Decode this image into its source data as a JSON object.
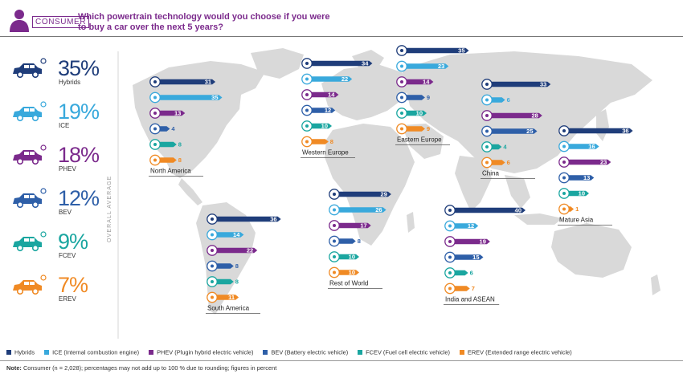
{
  "header": {
    "badge": "CONSUMER",
    "title": "Which powertrain technology would you choose if you were to buy a car over the next 5 years?"
  },
  "overall": {
    "label": "OVERALL AVERAGE",
    "items": [
      {
        "name": "Hybrids",
        "pct": "35%",
        "icon": "car-hybrid-icon"
      },
      {
        "name": "ICE",
        "pct": "19%",
        "icon": "car-ice-icon"
      },
      {
        "name": "PHEV",
        "pct": "18%",
        "icon": "car-phev-icon"
      },
      {
        "name": "BEV",
        "pct": "12%",
        "icon": "car-bev-icon"
      },
      {
        "name": "FCEV",
        "pct": "9%",
        "icon": "car-fcev-icon"
      },
      {
        "name": "EREV",
        "pct": "7%",
        "icon": "car-erev-icon"
      }
    ]
  },
  "colors": {
    "Hybrids": "#1f3d7a",
    "ICE": "#39a9dc",
    "PHEV": "#7b2a8c",
    "BEV": "#2e5fa8",
    "FCEV": "#1aa6a0",
    "EREV": "#f08a24",
    "map": "#d9d9d9"
  },
  "chart_data": {
    "type": "bar",
    "categories": [
      "Hybrids",
      "ICE",
      "PHEV",
      "BEV",
      "FCEV",
      "EREV"
    ],
    "regions": [
      {
        "name": "North America",
        "values": [
          31,
          35,
          13,
          4,
          8,
          8
        ]
      },
      {
        "name": "Western Europe",
        "values": [
          34,
          22,
          14,
          12,
          10,
          8
        ]
      },
      {
        "name": "Eastern Europe",
        "values": [
          35,
          23,
          14,
          9,
          10,
          9
        ]
      },
      {
        "name": "China",
        "values": [
          33,
          6,
          28,
          25,
          4,
          6
        ]
      },
      {
        "name": "Mature Asia",
        "values": [
          36,
          16,
          23,
          13,
          10,
          1
        ]
      },
      {
        "name": "South America",
        "values": [
          36,
          14,
          22,
          8,
          8,
          11
        ]
      },
      {
        "name": "Rest of World",
        "values": [
          29,
          26,
          17,
          8,
          10,
          10
        ]
      },
      {
        "name": "India and ASEAN",
        "values": [
          40,
          12,
          19,
          15,
          6,
          7
        ]
      }
    ]
  },
  "legend": [
    {
      "key": "Hybrids",
      "label": "Hybrids"
    },
    {
      "key": "ICE",
      "label": "ICE (Internal combustion engine)"
    },
    {
      "key": "PHEV",
      "label": "PHEV (Plugin hybrid electric vehicle)"
    },
    {
      "key": "BEV",
      "label": "BEV (Battery electric vehicle)"
    },
    {
      "key": "FCEV",
      "label": "FCEV (Fuel cell electric vehicle)"
    },
    {
      "key": "EREV",
      "label": "EREV (Extended range electric vehicle)"
    }
  ],
  "note": {
    "prefix": "Note:",
    "text": " Consumer (n = 2,028); percentages may not add up to 100 % due to rounding; figures in percent"
  }
}
